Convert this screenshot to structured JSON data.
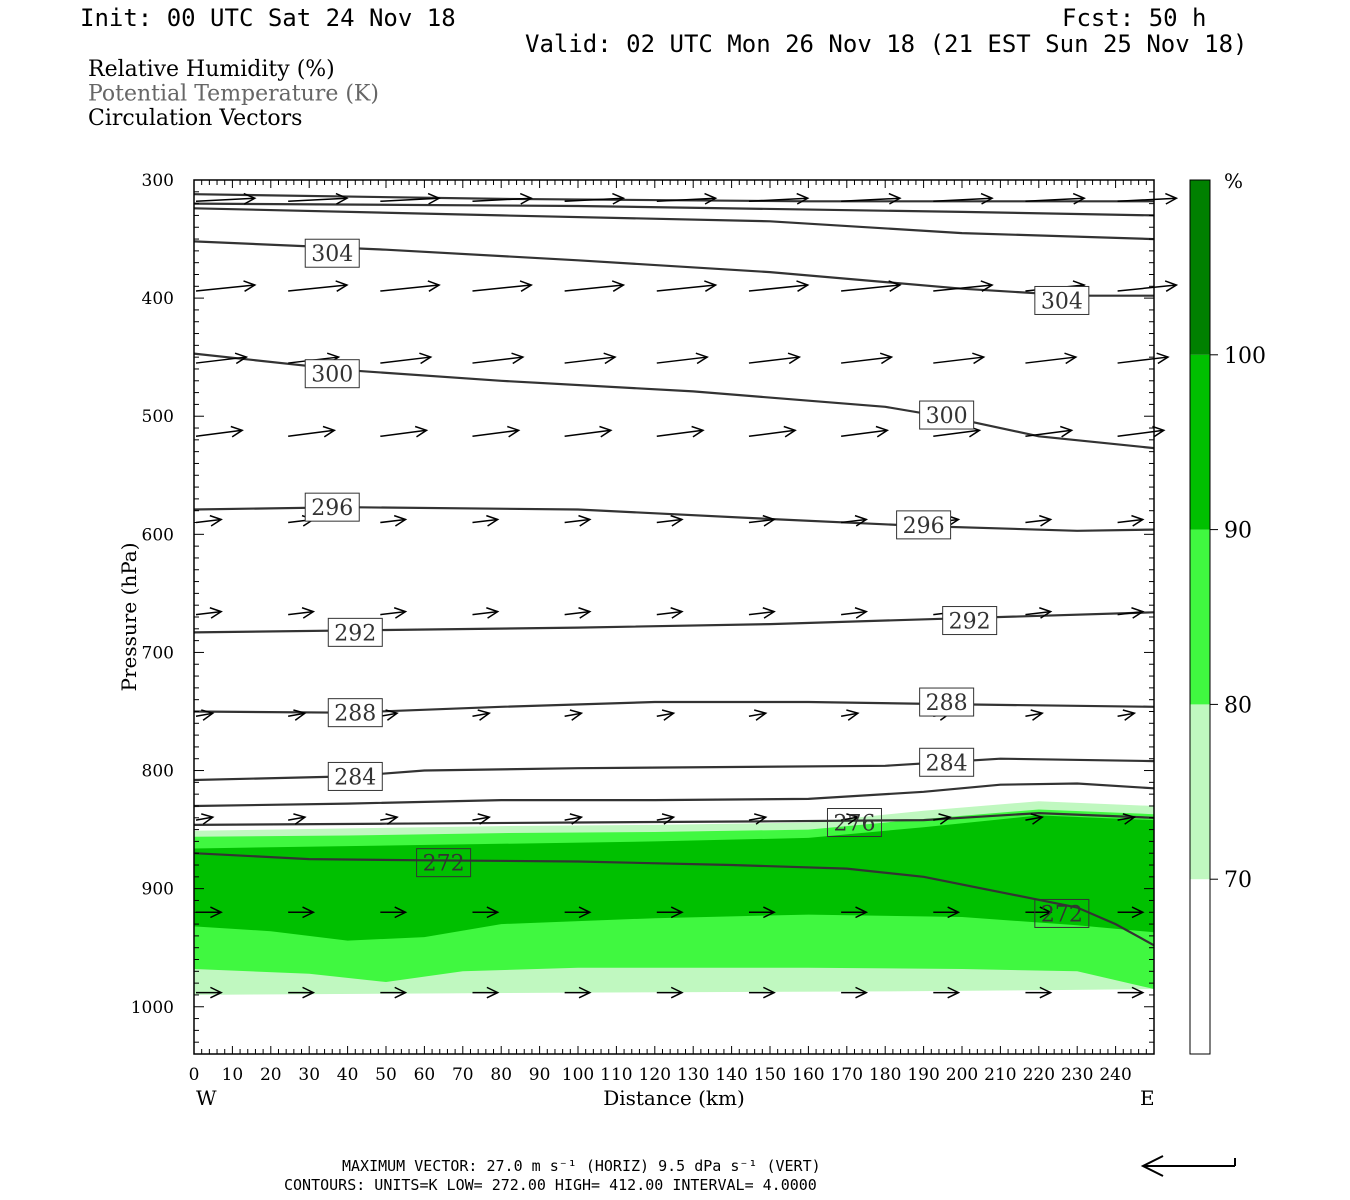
{
  "header": {
    "init": "Init: 00 UTC Sat 24 Nov 18",
    "fcst": "Fcst:   50 h",
    "valid": "Valid: 02 UTC Mon 26 Nov 18 (21 EST Sun 25 Nov 18)"
  },
  "legend_titles": [
    {
      "text": "Relative Humidity (%)",
      "color": "#000000"
    },
    {
      "text": "Potential Temperature (K)",
      "color": "#666666"
    },
    {
      "text": "Circulation Vectors",
      "color": "#000000"
    }
  ],
  "footer": {
    "max_vector": "MAXIMUM VECTOR:  27.0 m s⁻¹ (HORIZ)          9.5 dPa s⁻¹ (VERT)",
    "contours": "CONTOURS:  UNITS=K  LOW=   272.00        HIGH=  412.00        INTERVAL=     4.0000"
  },
  "chart_data": {
    "type": "cross-section",
    "xlabel": "Distance (km)",
    "ylabel": "Pressure (hPa)",
    "x_range": [
      0,
      250
    ],
    "y_range": [
      300,
      1040
    ],
    "x_ticks": [
      0,
      10,
      20,
      30,
      40,
      50,
      60,
      70,
      80,
      90,
      100,
      110,
      120,
      130,
      140,
      150,
      160,
      170,
      180,
      190,
      200,
      210,
      220,
      230,
      240
    ],
    "y_ticks": [
      300,
      400,
      500,
      600,
      700,
      800,
      900,
      1000
    ],
    "x_end_labels": {
      "left": "W",
      "right": "E"
    },
    "colorbar": {
      "unit": "%",
      "levels": [
        70,
        80,
        90,
        100
      ],
      "colors": [
        "#ffffff",
        "#c0f8c0",
        "#40f840",
        "#00c000",
        "#008000"
      ]
    },
    "rh_fills": [
      {
        "level": 70,
        "color": "#c0f8c0",
        "top": [
          [
            0,
            851
          ],
          [
            40,
            849
          ],
          [
            80,
            847
          ],
          [
            120,
            846
          ],
          [
            160,
            844
          ],
          [
            190,
            834
          ],
          [
            220,
            826
          ],
          [
            250,
            830
          ]
        ],
        "bottom": [
          [
            0,
            990
          ],
          [
            100,
            988
          ],
          [
            180,
            987
          ],
          [
            220,
            986
          ],
          [
            250,
            985
          ]
        ]
      },
      {
        "level": 80,
        "color": "#40f840",
        "top": [
          [
            0,
            856
          ],
          [
            40,
            855
          ],
          [
            80,
            853
          ],
          [
            120,
            852
          ],
          [
            160,
            850
          ],
          [
            190,
            841
          ],
          [
            220,
            833
          ],
          [
            250,
            837
          ]
        ],
        "bottom": [
          [
            0,
            968
          ],
          [
            30,
            972
          ],
          [
            50,
            979
          ],
          [
            70,
            970
          ],
          [
            100,
            967
          ],
          [
            160,
            967
          ],
          [
            200,
            968
          ],
          [
            230,
            970
          ],
          [
            250,
            985
          ]
        ]
      },
      {
        "level": 90,
        "color": "#00c000",
        "top": [
          [
            0,
            866
          ],
          [
            40,
            864
          ],
          [
            80,
            862
          ],
          [
            120,
            860
          ],
          [
            160,
            857
          ],
          [
            190,
            848
          ],
          [
            220,
            838
          ],
          [
            250,
            842
          ]
        ],
        "bottom": [
          [
            0,
            932
          ],
          [
            20,
            936
          ],
          [
            40,
            944
          ],
          [
            60,
            941
          ],
          [
            80,
            930
          ],
          [
            120,
            925
          ],
          [
            160,
            922
          ],
          [
            200,
            924
          ],
          [
            230,
            931
          ],
          [
            250,
            937
          ]
        ]
      }
    ],
    "theta_contours": [
      {
        "value": 272,
        "label_at": [
          [
            65,
            878
          ],
          [
            226,
            921
          ]
        ],
        "points": [
          [
            0,
            870
          ],
          [
            30,
            875
          ],
          [
            60,
            876
          ],
          [
            100,
            877
          ],
          [
            140,
            880
          ],
          [
            170,
            883
          ],
          [
            190,
            890
          ],
          [
            210,
            903
          ],
          [
            230,
            916
          ],
          [
            240,
            930
          ],
          [
            250,
            948
          ]
        ]
      },
      {
        "value": 276,
        "label_at": [
          [
            172,
            844
          ]
        ],
        "points": [
          [
            0,
            846
          ],
          [
            50,
            845
          ],
          [
            100,
            844
          ],
          [
            150,
            843
          ],
          [
            190,
            842
          ],
          [
            220,
            836
          ],
          [
            250,
            840
          ]
        ]
      },
      {
        "value": 280,
        "label_at": [],
        "points": [
          [
            0,
            830
          ],
          [
            40,
            828
          ],
          [
            80,
            825
          ],
          [
            120,
            825
          ],
          [
            160,
            824
          ],
          [
            190,
            818
          ],
          [
            210,
            812
          ],
          [
            230,
            811
          ],
          [
            250,
            815
          ]
        ]
      },
      {
        "value": 284,
        "label_at": [
          [
            42,
            805
          ],
          [
            196,
            793
          ]
        ],
        "points": [
          [
            0,
            808
          ],
          [
            40,
            805
          ],
          [
            60,
            800
          ],
          [
            100,
            798
          ],
          [
            140,
            797
          ],
          [
            180,
            796
          ],
          [
            210,
            790
          ],
          [
            250,
            792
          ]
        ]
      },
      {
        "value": 288,
        "label_at": [
          [
            42,
            751
          ],
          [
            196,
            742
          ]
        ],
        "points": [
          [
            0,
            750
          ],
          [
            40,
            751
          ],
          [
            80,
            746
          ],
          [
            120,
            742
          ],
          [
            160,
            742
          ],
          [
            200,
            744
          ],
          [
            250,
            746
          ]
        ]
      },
      {
        "value": 292,
        "label_at": [
          [
            42,
            683
          ],
          [
            202,
            673
          ]
        ],
        "points": [
          [
            0,
            683
          ],
          [
            50,
            681
          ],
          [
            100,
            679
          ],
          [
            150,
            676
          ],
          [
            200,
            671
          ],
          [
            250,
            666
          ]
        ]
      },
      {
        "value": 296,
        "label_at": [
          [
            36,
            577
          ],
          [
            190,
            592
          ]
        ],
        "points": [
          [
            0,
            579
          ],
          [
            40,
            577
          ],
          [
            100,
            579
          ],
          [
            150,
            587
          ],
          [
            190,
            593
          ],
          [
            230,
            597
          ],
          [
            250,
            596
          ]
        ]
      },
      {
        "value": 300,
        "label_at": [
          [
            36,
            464
          ],
          [
            196,
            499
          ]
        ],
        "points": [
          [
            0,
            447
          ],
          [
            40,
            461
          ],
          [
            80,
            470
          ],
          [
            130,
            479
          ],
          [
            180,
            492
          ],
          [
            200,
            503
          ],
          [
            220,
            517
          ],
          [
            250,
            527
          ]
        ]
      },
      {
        "value": 304,
        "label_at": [
          [
            36,
            362
          ],
          [
            226,
            402
          ]
        ],
        "points": [
          [
            0,
            352
          ],
          [
            50,
            359
          ],
          [
            100,
            368
          ],
          [
            150,
            378
          ],
          [
            200,
            392
          ],
          [
            230,
            398
          ],
          [
            250,
            398
          ]
        ]
      },
      {
        "value": 308,
        "label_at": [],
        "points": [
          [
            0,
            324
          ],
          [
            80,
            330
          ],
          [
            150,
            335
          ],
          [
            200,
            345
          ],
          [
            250,
            350
          ]
        ]
      },
      {
        "value": 312,
        "label_at": [],
        "points": [
          [
            0,
            320
          ],
          [
            100,
            322
          ],
          [
            200,
            327
          ],
          [
            250,
            330
          ]
        ]
      },
      {
        "value": 316,
        "label_at": [],
        "points": [
          [
            0,
            312
          ],
          [
            80,
            316
          ],
          [
            160,
            318
          ],
          [
            250,
            318
          ]
        ]
      }
    ],
    "vector_rows": [
      {
        "p": 318,
        "u": 14,
        "w": -1
      },
      {
        "p": 394,
        "u": 14,
        "w": -2
      },
      {
        "p": 455,
        "u": 12,
        "w": -2
      },
      {
        "p": 517,
        "u": 11,
        "w": -2
      },
      {
        "p": 590,
        "u": 6,
        "w": -1
      },
      {
        "p": 668,
        "u": 6,
        "w": -1
      },
      {
        "p": 754,
        "u": 4,
        "w": -1
      },
      {
        "p": 842,
        "u": 4,
        "w": -1
      },
      {
        "p": 920,
        "u": 6,
        "w": 0
      },
      {
        "p": 988,
        "u": 6,
        "w": 0
      }
    ],
    "vector_x": [
      0,
      24,
      48,
      72,
      96,
      120,
      144,
      168,
      192,
      216,
      240
    ]
  }
}
